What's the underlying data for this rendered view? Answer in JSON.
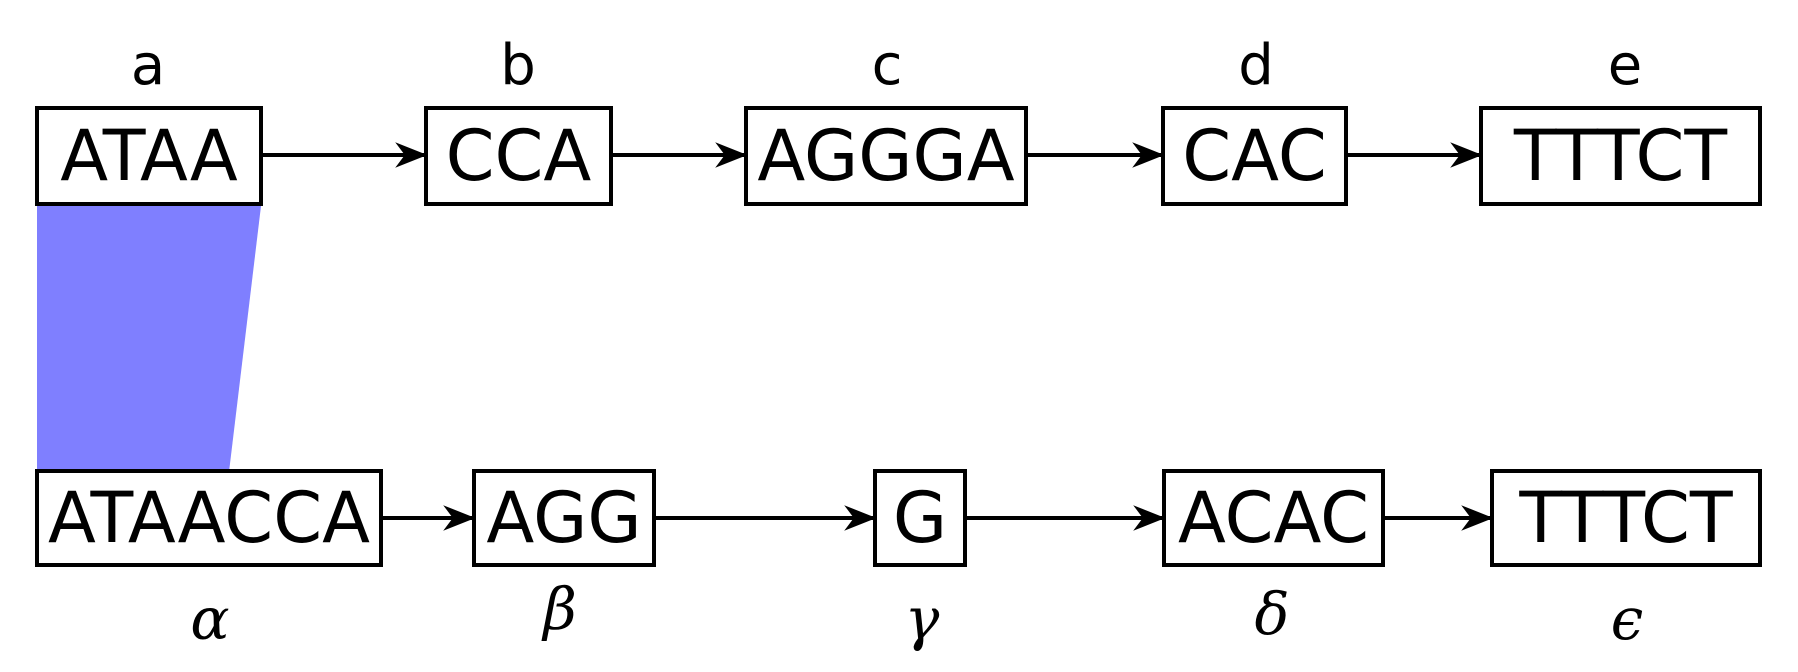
{
  "top_row": {
    "nodes": [
      {
        "label": "a",
        "sequence": "ATAA"
      },
      {
        "label": "b",
        "sequence": "CCA"
      },
      {
        "label": "c",
        "sequence": "AGGGA"
      },
      {
        "label": "d",
        "sequence": "CAC"
      },
      {
        "label": "e",
        "sequence": "TTTCT"
      }
    ]
  },
  "bottom_row": {
    "nodes": [
      {
        "label": "α",
        "sequence": "ATAACCA"
      },
      {
        "label": "β",
        "sequence": "AGG"
      },
      {
        "label": "γ",
        "sequence": "G"
      },
      {
        "label": "δ",
        "sequence": "ACAC"
      },
      {
        "label": "ϵ",
        "sequence": "TTTCT"
      }
    ]
  },
  "colors": {
    "alignment_band": "#7f7fff",
    "stroke": "#000000"
  }
}
